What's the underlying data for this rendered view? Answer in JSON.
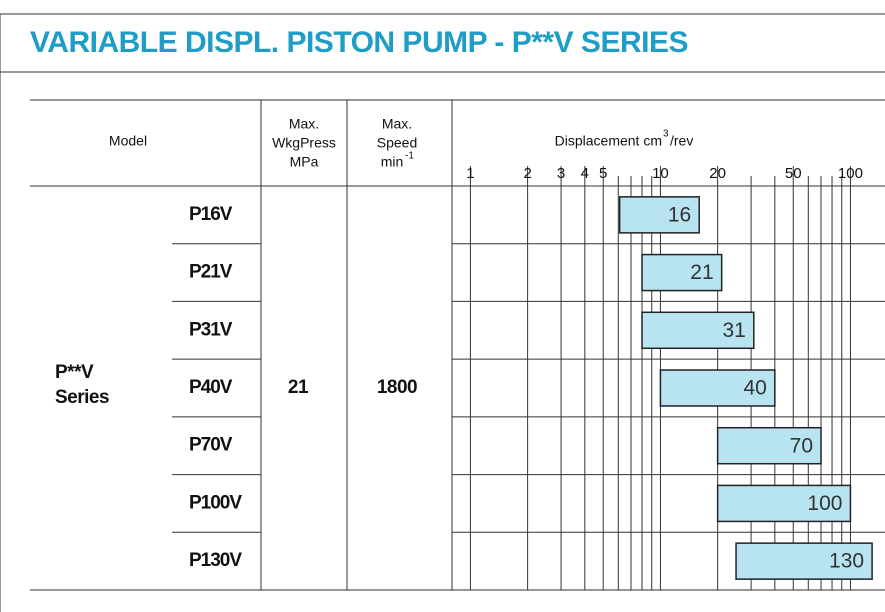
{
  "title": "VARIABLE DISPL. PISTON PUMP - P**V SERIES",
  "table": {
    "headers": {
      "model": "Model",
      "pressure": [
        "Max.",
        "WkgPress",
        "MPa"
      ],
      "speed": [
        "Max.",
        "Speed"
      ],
      "speed_unit": "min",
      "speed_unit_sup": "-1"
    },
    "series_name": [
      "P**V",
      "Series"
    ],
    "pressure": 21,
    "speed": 1800
  },
  "chart_data": {
    "type": "range_bar",
    "x_label": "Displacement cm",
    "x_label_sup": "3",
    "x_label_rest": "/rev",
    "x_log": true,
    "xlim": [
      0.8,
      152
    ],
    "xticks": [
      1,
      2,
      3,
      4,
      5,
      10,
      20,
      50,
      100
    ],
    "x_minor_grid": [
      6,
      7,
      8,
      9,
      30,
      40,
      60,
      70,
      80,
      90
    ],
    "categories": [
      "P16V",
      "P21V",
      "P31V",
      "P40V",
      "P70V",
      "P100V",
      "P130V"
    ],
    "low": [
      6.1,
      8,
      8,
      10,
      20,
      20,
      25
    ],
    "high": [
      16,
      21,
      31,
      40,
      70,
      100,
      130
    ],
    "color": "#b7e4f0"
  }
}
